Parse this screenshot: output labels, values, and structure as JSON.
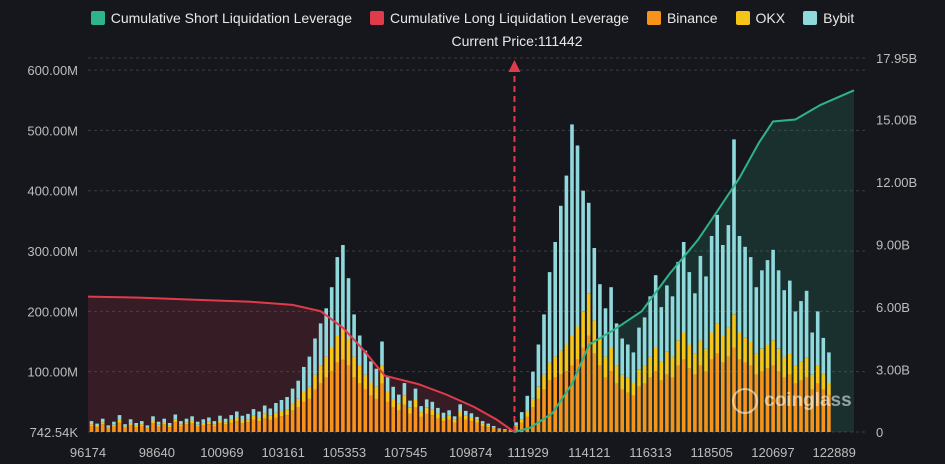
{
  "legend": [
    {
      "label": "Cumulative Short Liquidation Leverage",
      "color": "#2fb38a"
    },
    {
      "label": "Cumulative Long Liquidation Leverage",
      "color": "#e03b4b"
    },
    {
      "label": "Binance",
      "color": "#f7931a"
    },
    {
      "label": "OKX",
      "color": "#f5c518"
    },
    {
      "label": "Bybit",
      "color": "#8fd8dc"
    }
  ],
  "current_price_label": "Current Price:111442",
  "watermark": "coinglass",
  "chart_data": {
    "type": "bar",
    "title": "",
    "xlabel": "",
    "ylabel": "",
    "x_ticks": [
      "96174",
      "98640",
      "100969",
      "103161",
      "105353",
      "107545",
      "109874",
      "111929",
      "114121",
      "116313",
      "118505",
      "120697",
      "122889"
    ],
    "x_range": [
      96174,
      124100
    ],
    "current_price": 111442,
    "left_axis": {
      "ticks": [
        "742.54K",
        "100.00M",
        "200.00M",
        "300.00M",
        "400.00M",
        "500.00M",
        "600.00M"
      ],
      "range": [
        0,
        620
      ]
    },
    "right_axis": {
      "ticks": [
        "0",
        "3.00B",
        "6.00B",
        "9.00B",
        "12.00B",
        "15.00B",
        "17.95B"
      ],
      "range": [
        0,
        17.95
      ]
    },
    "grid": true,
    "legend_position": "top",
    "series": [
      {
        "name": "Cumulative Long Liquidation Leverage",
        "type": "area-line",
        "axis": "right",
        "points": [
          [
            96174,
            6.5
          ],
          [
            98000,
            6.45
          ],
          [
            100000,
            6.35
          ],
          [
            102000,
            6.25
          ],
          [
            103500,
            6.1
          ],
          [
            104500,
            5.8
          ],
          [
            105300,
            5.0
          ],
          [
            106000,
            4.0
          ],
          [
            106800,
            2.7
          ],
          [
            108000,
            2.3
          ],
          [
            109000,
            1.8
          ],
          [
            110000,
            1.2
          ],
          [
            110800,
            0.6
          ],
          [
            111442,
            0.0
          ]
        ]
      },
      {
        "name": "Cumulative Short Liquidation Leverage",
        "type": "area-line",
        "axis": "right",
        "points": [
          [
            111442,
            0.0
          ],
          [
            112000,
            0.2
          ],
          [
            112800,
            0.9
          ],
          [
            113500,
            2.3
          ],
          [
            114121,
            4.2
          ],
          [
            115000,
            4.9
          ],
          [
            116000,
            5.8
          ],
          [
            117000,
            7.6
          ],
          [
            118000,
            9.2
          ],
          [
            118505,
            10.2
          ],
          [
            119500,
            12.2
          ],
          [
            120200,
            13.9
          ],
          [
            120697,
            14.9
          ],
          [
            121500,
            15.0
          ],
          [
            122400,
            15.7
          ],
          [
            123600,
            16.4
          ]
        ]
      }
    ],
    "bars": {
      "axis": "left",
      "x": [
        96300,
        96500,
        96700,
        96900,
        97100,
        97300,
        97500,
        97700,
        97900,
        98100,
        98300,
        98500,
        98700,
        98900,
        99100,
        99300,
        99500,
        99700,
        99900,
        100100,
        100300,
        100500,
        100700,
        100900,
        101100,
        101300,
        101500,
        101700,
        101900,
        102100,
        102300,
        102500,
        102700,
        102900,
        103100,
        103300,
        103500,
        103700,
        103900,
        104100,
        104300,
        104500,
        104700,
        104900,
        105100,
        105300,
        105500,
        105700,
        105900,
        106100,
        106300,
        106500,
        106700,
        106900,
        107100,
        107300,
        107500,
        107700,
        107900,
        108100,
        108300,
        108500,
        108700,
        108900,
        109100,
        109300,
        109500,
        109700,
        109900,
        110100,
        110300,
        110500,
        110700,
        110900,
        111100,
        111300,
        111500,
        111700,
        111900,
        112100,
        112300,
        112500,
        112700,
        112900,
        113100,
        113300,
        113500,
        113700,
        113900,
        114100,
        114300,
        114500,
        114700,
        114900,
        115100,
        115300,
        115500,
        115700,
        115900,
        116100,
        116300,
        116500,
        116700,
        116900,
        117100,
        117300,
        117500,
        117700,
        117900,
        118100,
        118300,
        118500,
        118700,
        118900,
        119100,
        119300,
        119500,
        119700,
        119900,
        120100,
        120300,
        120500,
        120700,
        120900,
        121100,
        121300,
        121500,
        121700,
        121900,
        122100,
        122300,
        122500,
        122700,
        122900,
        123100,
        123300
      ],
      "series": [
        {
          "name": "Binance",
          "values": [
            10,
            8,
            12,
            6,
            9,
            15,
            7,
            11,
            8,
            10,
            6,
            14,
            9,
            12,
            8,
            16,
            10,
            12,
            14,
            9,
            11,
            13,
            10,
            14,
            12,
            15,
            18,
            14,
            16,
            20,
            18,
            22,
            20,
            24,
            26,
            28,
            35,
            40,
            50,
            55,
            70,
            80,
            90,
            100,
            115,
            120,
            110,
            90,
            80,
            70,
            60,
            55,
            80,
            50,
            40,
            35,
            45,
            30,
            40,
            25,
            30,
            28,
            22,
            18,
            20,
            15,
            25,
            20,
            18,
            15,
            10,
            8,
            6,
            4,
            3,
            2,
            8,
            15,
            25,
            40,
            55,
            70,
            85,
            90,
            95,
            100,
            110,
            120,
            140,
            160,
            130,
            110,
            90,
            100,
            80,
            70,
            65,
            60,
            75,
            80,
            90,
            100,
            85,
            95,
            90,
            110,
            120,
            105,
            95,
            110,
            100,
            120,
            130,
            115,
            125,
            140,
            120,
            115,
            110,
            95,
            100,
            105,
            110,
            100,
            90,
            95,
            80,
            85,
            90,
            70,
            80,
            70,
            60
          ]
        },
        {
          "name": "OKX",
          "values": [
            3,
            2,
            4,
            2,
            3,
            5,
            2,
            4,
            3,
            3,
            2,
            5,
            3,
            4,
            3,
            5,
            3,
            4,
            5,
            3,
            4,
            4,
            3,
            5,
            4,
            5,
            6,
            5,
            5,
            7,
            6,
            8,
            7,
            8,
            9,
            10,
            12,
            15,
            18,
            20,
            25,
            30,
            35,
            40,
            45,
            50,
            45,
            35,
            30,
            25,
            22,
            20,
            30,
            18,
            15,
            12,
            16,
            10,
            14,
            8,
            10,
            10,
            8,
            6,
            7,
            5,
            9,
            7,
            6,
            5,
            4,
            3,
            2,
            1,
            1,
            1,
            3,
            6,
            10,
            15,
            20,
            25,
            30,
            35,
            40,
            45,
            50,
            55,
            60,
            70,
            55,
            45,
            35,
            40,
            30,
            25,
            25,
            22,
            28,
            30,
            35,
            40,
            32,
            38,
            35,
            42,
            45,
            40,
            35,
            42,
            38,
            45,
            50,
            45,
            48,
            55,
            45,
            42,
            40,
            35,
            38,
            40,
            42,
            38,
            35,
            36,
            30,
            32,
            34,
            25,
            30,
            26,
            22
          ]
        },
        {
          "name": "Bybit",
          "values": [
            5,
            4,
            6,
            3,
            5,
            8,
            4,
            6,
            4,
            5,
            3,
            7,
            5,
            6,
            4,
            8,
            5,
            6,
            7,
            5,
            6,
            7,
            5,
            8,
            6,
            8,
            10,
            8,
            9,
            11,
            10,
            14,
            12,
            16,
            18,
            20,
            25,
            30,
            40,
            50,
            60,
            70,
            80,
            100,
            130,
            140,
            100,
            70,
            50,
            40,
            35,
            30,
            40,
            25,
            20,
            15,
            20,
            12,
            18,
            10,
            14,
            12,
            10,
            8,
            9,
            6,
            12,
            8,
            7,
            5,
            4,
            3,
            2,
            1,
            1,
            1,
            5,
            12,
            25,
            45,
            70,
            100,
            150,
            190,
            240,
            280,
            350,
            300,
            200,
            150,
            120,
            90,
            80,
            100,
            70,
            60,
            55,
            50,
            70,
            80,
            100,
            120,
            90,
            110,
            100,
            130,
            150,
            120,
            100,
            140,
            120,
            160,
            180,
            150,
            170,
            290,
            160,
            150,
            140,
            110,
            130,
            140,
            150,
            130,
            110,
            120,
            90,
            100,
            110,
            70,
            90,
            60,
            50
          ]
        }
      ]
    }
  }
}
